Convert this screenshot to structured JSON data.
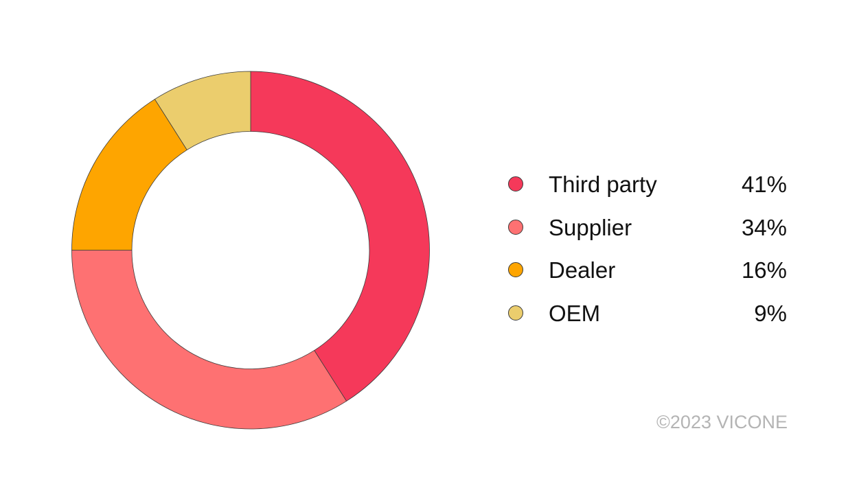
{
  "chart_data": {
    "type": "pie",
    "variant": "donut",
    "title": "",
    "categories": [
      "Third party",
      "Supplier",
      "Dealer",
      "OEM"
    ],
    "values": [
      41,
      34,
      16,
      9
    ],
    "value_labels": [
      "41%",
      "34%",
      "16%",
      "9%"
    ],
    "colors": [
      "#f5395a",
      "#fe7172",
      "#fea500",
      "#ebcd6d"
    ],
    "legend_position": "right",
    "start_angle": "12 o'clock",
    "direction": "clockwise"
  },
  "footer": {
    "copyright": "©2023 VICONE"
  }
}
